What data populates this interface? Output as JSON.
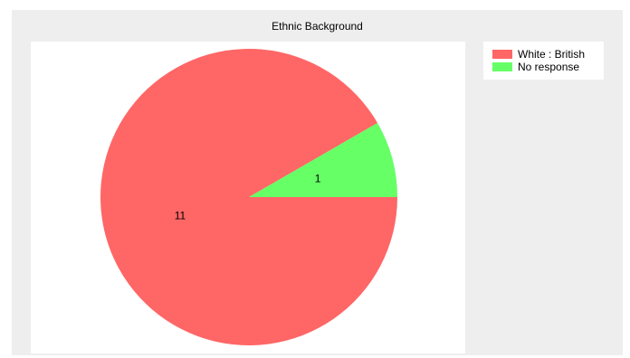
{
  "chart_data": {
    "type": "pie",
    "title": "Ethnic Background",
    "legend_position": "top-right",
    "slices": [
      {
        "label": "White : British",
        "value": 11,
        "color": "#ff6666"
      },
      {
        "label": "No response",
        "value": 1,
        "color": "#66ff66"
      }
    ]
  }
}
